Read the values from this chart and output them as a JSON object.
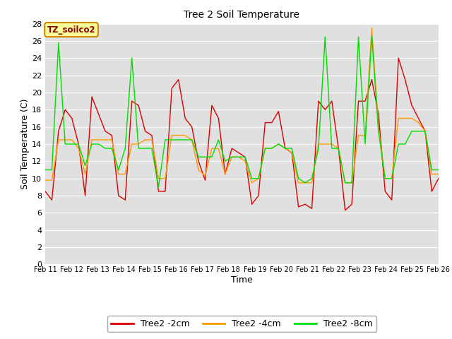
{
  "title": "Tree 2 Soil Temperature",
  "xlabel": "Time",
  "ylabel": "Soil Temperature (C)",
  "ylim": [
    0,
    28
  ],
  "yticks": [
    0,
    2,
    4,
    6,
    8,
    10,
    12,
    14,
    16,
    18,
    20,
    22,
    24,
    26,
    28
  ],
  "x_labels": [
    "Feb 11",
    "Feb 12",
    "Feb 13",
    "Feb 14",
    "Feb 15",
    "Feb 16",
    "Feb 17",
    "Feb 18",
    "Feb 19",
    "Feb 20",
    "Feb 21",
    "Feb 22",
    "Feb 23",
    "Feb 24",
    "Feb 25",
    "Feb 26"
  ],
  "annotation_text": "TZ_soilco2",
  "annotation_bg": "#ffff99",
  "annotation_border": "#cc8800",
  "annotation_text_color": "#880000",
  "line_red": [
    8.5,
    7.5,
    15.5,
    18.0,
    17.0,
    14.0,
    8.0,
    19.5,
    17.5,
    15.5,
    15.0,
    8.0,
    7.5,
    19.0,
    18.5,
    15.5,
    15.0,
    8.5,
    8.5,
    20.5,
    21.5,
    17.0,
    16.0,
    12.0,
    9.8,
    18.5,
    17.0,
    10.5,
    13.5,
    13.0,
    12.5,
    7.0,
    8.0,
    16.5,
    16.5,
    17.8,
    13.5,
    13.0,
    6.7,
    7.0,
    6.5,
    19.0,
    18.0,
    19.0,
    13.5,
    6.3,
    7.0,
    19.0,
    19.0,
    21.5,
    17.5,
    8.5,
    7.5,
    24.0,
    21.5,
    18.5,
    17.0,
    15.5,
    8.5,
    10.0
  ],
  "line_orange": [
    9.8,
    9.8,
    14.5,
    14.5,
    14.5,
    13.5,
    10.5,
    14.5,
    14.5,
    14.5,
    14.5,
    10.5,
    10.5,
    14.0,
    14.0,
    14.5,
    14.5,
    10.0,
    10.0,
    15.0,
    15.0,
    15.0,
    14.5,
    11.0,
    10.3,
    13.5,
    13.5,
    10.5,
    12.5,
    12.5,
    12.0,
    9.5,
    10.0,
    13.5,
    13.5,
    14.0,
    13.5,
    13.0,
    9.5,
    9.5,
    9.5,
    14.0,
    14.0,
    14.0,
    13.5,
    9.5,
    9.5,
    15.0,
    15.0,
    27.5,
    16.0,
    10.0,
    10.0,
    17.0,
    17.0,
    17.0,
    16.5,
    15.5,
    10.5,
    10.5
  ],
  "line_green": [
    11.0,
    11.0,
    25.8,
    14.0,
    14.0,
    14.0,
    11.5,
    14.0,
    14.0,
    13.5,
    13.5,
    11.0,
    13.5,
    24.0,
    13.5,
    13.5,
    13.5,
    9.0,
    14.5,
    14.5,
    14.5,
    14.5,
    14.5,
    12.5,
    12.5,
    12.5,
    14.5,
    12.0,
    12.5,
    12.5,
    12.5,
    10.0,
    10.0,
    13.5,
    13.5,
    14.0,
    13.5,
    13.5,
    10.0,
    9.5,
    10.0,
    13.5,
    26.5,
    13.5,
    13.5,
    9.5,
    9.5,
    26.5,
    14.0,
    26.5,
    15.5,
    10.0,
    10.0,
    14.0,
    14.0,
    15.5,
    15.5,
    15.5,
    11.0,
    11.0
  ],
  "bg_color": "#e0e0e0",
  "color_red": "#dd0000",
  "color_orange": "#ff9900",
  "color_green": "#00dd00",
  "legend_labels": [
    "Tree2 -2cm",
    "Tree2 -4cm",
    "Tree2 -8cm"
  ],
  "n_points": 60,
  "n_days": 16,
  "figsize": [
    6.4,
    4.8
  ],
  "dpi": 100
}
